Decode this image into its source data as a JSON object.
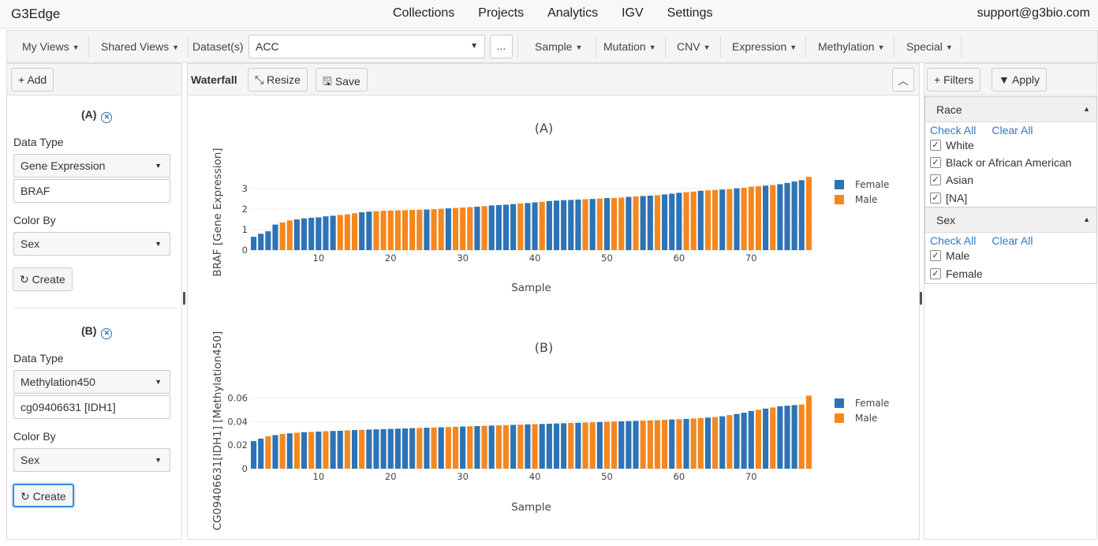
{
  "app": {
    "brand": "G3Edge",
    "email": "support@g3bio.com"
  },
  "nav": [
    "Collections",
    "Projects",
    "Analytics",
    "IGV",
    "Settings"
  ],
  "toolbar": {
    "my_views": "My Views",
    "shared_views": "Shared Views",
    "dataset_label": "Dataset(s)",
    "dataset_value": "ACC",
    "more_label": "...",
    "menus": [
      "Sample",
      "Mutation",
      "CNV",
      "Expression",
      "Methylation",
      "Special"
    ]
  },
  "left": {
    "add_label": "Add",
    "sections": [
      {
        "title": "(A)",
        "data_type_label": "Data Type",
        "data_type": "Gene Expression",
        "gene": "BRAF",
        "color_by_label": "Color By",
        "color_by": "Sex",
        "create_label": "Create"
      },
      {
        "title": "(B)",
        "data_type_label": "Data Type",
        "data_type": "Methylation450",
        "gene": "cg09406631 [IDH1]",
        "color_by_label": "Color By",
        "color_by": "Sex",
        "create_label": "Create"
      }
    ]
  },
  "center": {
    "title": "Waterfall",
    "resize_label": "Resize",
    "save_label": "Save"
  },
  "right": {
    "filters_label": "Filters",
    "apply_label": "Apply",
    "facets": [
      {
        "title": "Race",
        "check_all": "Check All",
        "clear_all": "Clear All",
        "options": [
          "White",
          "Black or African American",
          "Asian",
          "[NA]"
        ]
      },
      {
        "title": "Sex",
        "check_all": "Check All",
        "clear_all": "Clear All",
        "options": [
          "Male",
          "Female"
        ]
      }
    ]
  },
  "chart_data": [
    {
      "type": "bar",
      "title": "(A)",
      "xlabel": "Sample",
      "ylabel": "BRAF [Gene Expression]",
      "ylim": [
        0,
        3.7
      ],
      "yticks": [
        0,
        1,
        2,
        3
      ],
      "xticks": [
        10,
        20,
        30,
        40,
        50,
        60,
        70
      ],
      "legend_position": "right",
      "series": [
        {
          "name": "Female",
          "color": "#2e73b5"
        },
        {
          "name": "Male",
          "color": "#f5871f"
        }
      ],
      "values": [
        0.65,
        0.8,
        0.92,
        1.25,
        1.35,
        1.45,
        1.5,
        1.55,
        1.58,
        1.6,
        1.65,
        1.68,
        1.72,
        1.75,
        1.8,
        1.85,
        1.88,
        1.9,
        1.92,
        1.93,
        1.94,
        1.95,
        1.96,
        1.97,
        1.98,
        2.0,
        2.02,
        2.04,
        2.06,
        2.08,
        2.1,
        2.12,
        2.15,
        2.18,
        2.2,
        2.22,
        2.25,
        2.28,
        2.3,
        2.33,
        2.36,
        2.4,
        2.42,
        2.44,
        2.45,
        2.47,
        2.49,
        2.5,
        2.52,
        2.54,
        2.55,
        2.57,
        2.6,
        2.62,
        2.64,
        2.66,
        2.68,
        2.72,
        2.76,
        2.8,
        2.83,
        2.86,
        2.9,
        2.92,
        2.94,
        2.96,
        2.98,
        3.02,
        3.05,
        3.1,
        3.12,
        3.15,
        3.18,
        3.22,
        3.28,
        3.35,
        3.42,
        3.58
      ],
      "groups": [
        "Female",
        "Female",
        "Female",
        "Female",
        "Male",
        "Male",
        "Female",
        "Female",
        "Female",
        "Female",
        "Female",
        "Female",
        "Male",
        "Male",
        "Male",
        "Female",
        "Female",
        "Male",
        "Male",
        "Male",
        "Male",
        "Male",
        "Male",
        "Male",
        "Female",
        "Male",
        "Male",
        "Female",
        "Male",
        "Male",
        "Male",
        "Female",
        "Male",
        "Female",
        "Female",
        "Female",
        "Female",
        "Male",
        "Female",
        "Female",
        "Male",
        "Female",
        "Female",
        "Female",
        "Female",
        "Female",
        "Male",
        "Female",
        "Male",
        "Female",
        "Male",
        "Male",
        "Female",
        "Male",
        "Female",
        "Female",
        "Male",
        "Female",
        "Female",
        "Female",
        "Male",
        "Male",
        "Female",
        "Male",
        "Male",
        "Female",
        "Male",
        "Female",
        "Male",
        "Male",
        "Male",
        "Female",
        "Male",
        "Female",
        "Female",
        "Female",
        "Female",
        "Male"
      ]
    },
    {
      "type": "bar",
      "title": "(B)",
      "xlabel": "Sample",
      "ylabel": "CG09406631[IDH1] [Methylation450]",
      "ylim": [
        0,
        0.065
      ],
      "yticks": [
        0,
        0.02,
        0.04,
        0.06
      ],
      "xticks": [
        10,
        20,
        30,
        40,
        50,
        60,
        70
      ],
      "legend_position": "right",
      "series": [
        {
          "name": "Female",
          "color": "#2e73b5"
        },
        {
          "name": "Male",
          "color": "#f5871f"
        }
      ],
      "values": [
        0.0235,
        0.0255,
        0.0275,
        0.0285,
        0.0295,
        0.03,
        0.0305,
        0.031,
        0.0312,
        0.0315,
        0.0318,
        0.032,
        0.0322,
        0.0325,
        0.0328,
        0.033,
        0.0332,
        0.0334,
        0.0336,
        0.0338,
        0.034,
        0.0342,
        0.0344,
        0.0346,
        0.0348,
        0.035,
        0.0352,
        0.0354,
        0.0356,
        0.0358,
        0.036,
        0.0362,
        0.0364,
        0.0366,
        0.0368,
        0.037,
        0.0372,
        0.0374,
        0.0376,
        0.0378,
        0.038,
        0.0382,
        0.0384,
        0.0386,
        0.0388,
        0.039,
        0.0392,
        0.0394,
        0.0396,
        0.0398,
        0.04,
        0.0402,
        0.0404,
        0.0406,
        0.0408,
        0.041,
        0.0412,
        0.0415,
        0.0418,
        0.042,
        0.0423,
        0.0426,
        0.043,
        0.0434,
        0.0438,
        0.0445,
        0.0455,
        0.0465,
        0.0475,
        0.049,
        0.05,
        0.051,
        0.052,
        0.053,
        0.0535,
        0.054,
        0.0545,
        0.062
      ],
      "groups": [
        "Female",
        "Female",
        "Male",
        "Female",
        "Male",
        "Female",
        "Male",
        "Female",
        "Male",
        "Female",
        "Male",
        "Female",
        "Female",
        "Male",
        "Female",
        "Male",
        "Female",
        "Female",
        "Female",
        "Female",
        "Female",
        "Female",
        "Female",
        "Male",
        "Female",
        "Male",
        "Female",
        "Male",
        "Male",
        "Female",
        "Male",
        "Female",
        "Male",
        "Female",
        "Male",
        "Male",
        "Female",
        "Male",
        "Female",
        "Male",
        "Female",
        "Female",
        "Female",
        "Female",
        "Male",
        "Female",
        "Male",
        "Male",
        "Female",
        "Male",
        "Male",
        "Female",
        "Female",
        "Female",
        "Male",
        "Male",
        "Male",
        "Male",
        "Female",
        "Male",
        "Female",
        "Male",
        "Male",
        "Female",
        "Male",
        "Female",
        "Male",
        "Female",
        "Female",
        "Female",
        "Male",
        "Female",
        "Male",
        "Female",
        "Female",
        "Female",
        "Male",
        "Male"
      ]
    }
  ]
}
